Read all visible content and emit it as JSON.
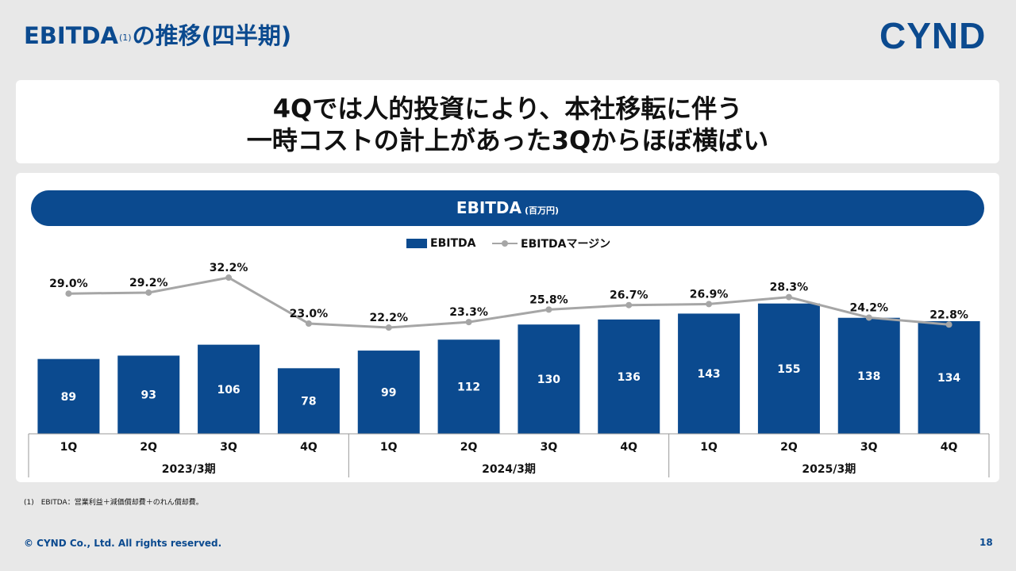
{
  "header": {
    "title_main": "EBITDA",
    "title_note": "(1)",
    "title_rest": "の推移(四半期)",
    "logo": "CYND"
  },
  "headline": {
    "line1": "4Qでは人的投資により、本社移転に伴う",
    "line2": "一時コストの計上があった3Qからほぼ横ばい"
  },
  "banner": {
    "title": "EBITDA",
    "unit": "(百万円)"
  },
  "colors": {
    "bar": "#0b4a8f",
    "line": "#a6a6a6",
    "brand": "#0b4a8f"
  },
  "chart_data": {
    "type": "bar",
    "categories": [
      "1Q",
      "2Q",
      "3Q",
      "4Q",
      "1Q",
      "2Q",
      "3Q",
      "4Q",
      "1Q",
      "2Q",
      "3Q",
      "4Q"
    ],
    "groups": [
      {
        "label": "2023/3期",
        "count": 4
      },
      {
        "label": "2024/3期",
        "count": 4
      },
      {
        "label": "2025/3期",
        "count": 4
      }
    ],
    "series": [
      {
        "name": "EBITDA",
        "kind": "bar",
        "values": [
          89,
          93,
          106,
          78,
          99,
          112,
          130,
          136,
          143,
          155,
          138,
          134
        ]
      },
      {
        "name": "EBITDAマージン",
        "kind": "line",
        "values": [
          29.0,
          29.2,
          32.2,
          23.0,
          22.2,
          23.3,
          25.8,
          26.7,
          26.9,
          28.3,
          24.2,
          22.8
        ],
        "labels": [
          "29.0%",
          "29.2%",
          "32.2%",
          "23.0%",
          "22.2%",
          "23.3%",
          "25.8%",
          "26.7%",
          "26.9%",
          "28.3%",
          "24.2%",
          "22.8%"
        ]
      }
    ],
    "legend_position": "top-center",
    "grid": false
  },
  "footnote": "(1)　EBITDA：営業利益＋減価償却費＋のれん償却費。",
  "footer": {
    "copyright": "© CYND Co., Ltd. All rights reserved.",
    "page": "18"
  }
}
